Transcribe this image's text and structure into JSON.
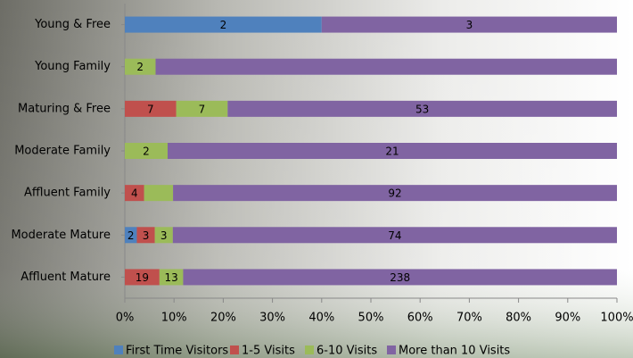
{
  "chart_data": {
    "type": "stacked-bar-100",
    "categories": [
      "Young & Free",
      "Young Family",
      "Maturing & Free",
      "Moderate Family",
      "Affluent Family",
      "Moderate Mature",
      "Affluent Mature"
    ],
    "series": [
      {
        "name": "First Time Visitors",
        "color": "#4f81bd",
        "values": [
          2,
          null,
          null,
          null,
          null,
          2,
          null
        ],
        "value_labels": [
          2,
          null,
          null,
          null,
          null,
          2,
          null
        ]
      },
      {
        "name": "1-5 Visits",
        "color": "#c0504d",
        "values": [
          null,
          null,
          7,
          null,
          4,
          3,
          19
        ],
        "value_labels": [
          null,
          null,
          7,
          null,
          4,
          3,
          19
        ]
      },
      {
        "name": "6-10 Visits",
        "color": "#9bbb59",
        "values": [
          null,
          2,
          7,
          2,
          6,
          3,
          13
        ],
        "value_labels": [
          null,
          2,
          7,
          2,
          null,
          3,
          13
        ]
      },
      {
        "name": "More than 10 Visits",
        "color": "#8064a2",
        "values": [
          3,
          30,
          53,
          21,
          92,
          74,
          238
        ],
        "value_labels": [
          3,
          null,
          53,
          21,
          92,
          74,
          238
        ]
      }
    ],
    "xlim": [
      0,
      100
    ],
    "xticks": [
      {
        "value": 0,
        "label": "0%"
      },
      {
        "value": 10,
        "label": "10%"
      },
      {
        "value": 20,
        "label": "20%"
      },
      {
        "value": 30,
        "label": "30%"
      },
      {
        "value": 40,
        "label": "40%"
      },
      {
        "value": 50,
        "label": "50%"
      },
      {
        "value": 60,
        "label": "60%"
      },
      {
        "value": 70,
        "label": "70%"
      },
      {
        "value": 80,
        "label": "80%"
      },
      {
        "value": 90,
        "label": "90%"
      },
      {
        "value": 100,
        "label": "100%"
      }
    ],
    "legend": "bottom"
  }
}
